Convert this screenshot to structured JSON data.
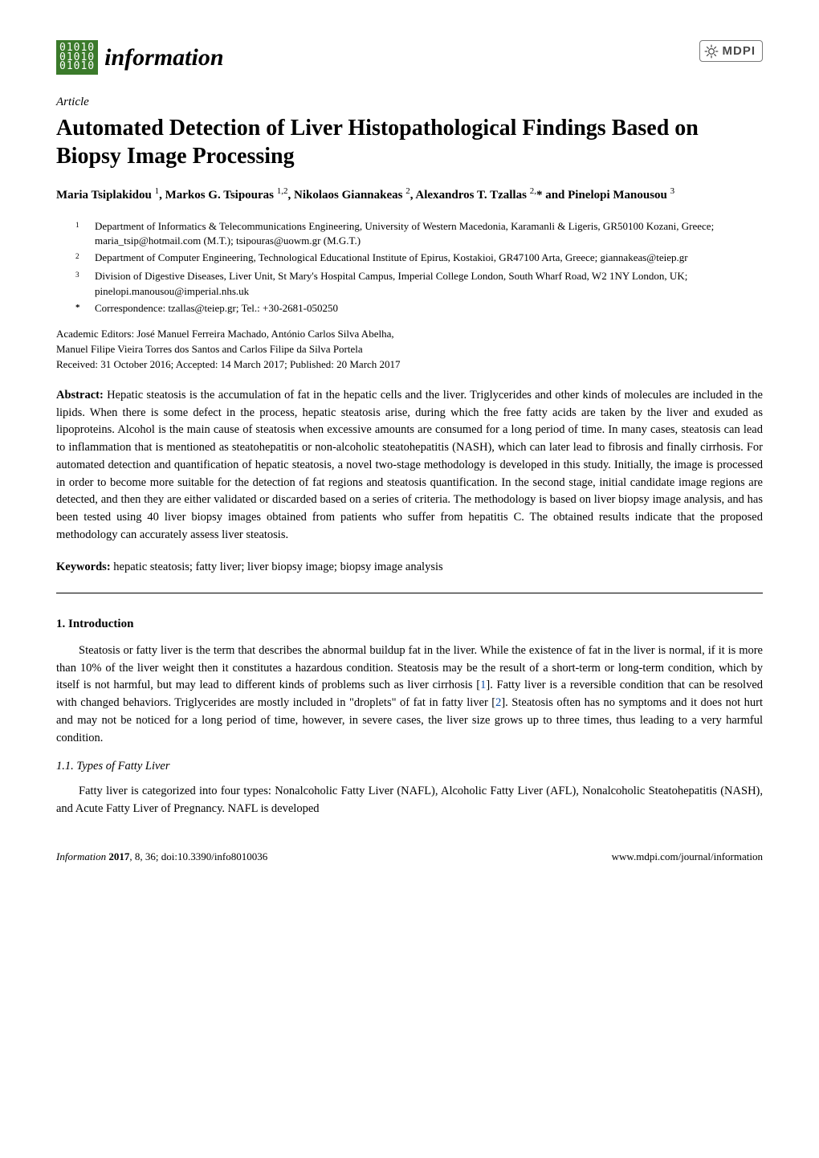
{
  "journal": {
    "logo_matrix": [
      "01010",
      "01010",
      "01010"
    ],
    "name": "information",
    "publisher_logo_text": "MDPI"
  },
  "article": {
    "type": "Article",
    "title": "Automated Detection of Liver Histopathological Findings Based on Biopsy Image Processing",
    "authors_html": "Maria Tsiplakidou <sup>1</sup>, Markos G. Tsipouras <sup>1,2</sup>, Nikolaos Giannakeas <sup>2</sup>, Alexandros T. Tzallas <sup>2,</sup>* and Pinelopi Manousou <sup>3</sup>"
  },
  "affiliations": [
    {
      "num": "1",
      "text": "Department of Informatics & Telecommunications Engineering, University of Western Macedonia, Karamanli & Ligeris, GR50100 Kozani, Greece; maria_tsip@hotmail.com (M.T.); tsipouras@uowm.gr (M.G.T.)"
    },
    {
      "num": "2",
      "text": "Department of Computer Engineering, Technological Educational Institute of Epirus, Kostakioi, GR47100 Arta, Greece; giannakeas@teiep.gr"
    },
    {
      "num": "3",
      "text": "Division of Digestive Diseases, Liver Unit, St Mary's Hospital Campus, Imperial College London, South Wharf Road, W2 1NY London, UK; pinelopi.manousou@imperial.nhs.uk"
    },
    {
      "num": "*",
      "text": "Correspondence: tzallas@teiep.gr; Tel.: +30-2681-050250"
    }
  ],
  "editors": {
    "line1": "Academic Editors: José Manuel Ferreira Machado, António Carlos Silva Abelha,",
    "line2": "Manuel Filipe Vieira Torres dos Santos and Carlos Filipe da Silva Portela",
    "dates": "Received: 31 October 2016; Accepted: 14 March 2017; Published: 20 March 2017"
  },
  "abstract": {
    "label": "Abstract:",
    "text": " Hepatic steatosis is the accumulation of fat in the hepatic cells and the liver. Triglycerides and other kinds of molecules are included in the lipids. When there is some defect in the process, hepatic steatosis arise, during which the free fatty acids are taken by the liver and exuded as lipoproteins. Alcohol is the main cause of steatosis when excessive amounts are consumed for a long period of time. In many cases, steatosis can lead to inflammation that is mentioned as steatohepatitis or non-alcoholic steatohepatitis (NASH), which can later lead to fibrosis and finally cirrhosis. For automated detection and quantification of hepatic steatosis, a novel two-stage methodology is developed in this study. Initially, the image is processed in order to become more suitable for the detection of fat regions and steatosis quantification. In the second stage, initial candidate image regions are detected, and then they are either validated or discarded based on a series of criteria. The methodology is based on liver biopsy image analysis, and has been tested using 40 liver biopsy images obtained from patients who suffer from hepatitis C. The obtained results indicate that the proposed methodology can accurately assess liver steatosis."
  },
  "keywords": {
    "label": "Keywords:",
    "text": " hepatic steatosis; fatty liver; liver biopsy image; biopsy image analysis"
  },
  "sections": {
    "intro_heading": "1. Introduction",
    "intro_p1_a": "Steatosis or fatty liver is the term that describes the abnormal buildup fat in the liver. While the existence of fat in the liver is normal, if it is more than 10% of the liver weight then it constitutes a hazardous condition. Steatosis may be the result of a short-term or long-term condition, which by itself is not harmful, but may lead to different kinds of problems such as liver cirrhosis [",
    "intro_p1_ref1": "1",
    "intro_p1_b": "]. Fatty liver is a reversible condition that can be resolved with changed behaviors. Triglycerides are mostly included in \"droplets\" of fat in fatty liver [",
    "intro_p1_ref2": "2",
    "intro_p1_c": "]. Steatosis often has no symptoms and it does not hurt and may not be noticed for a long period of time, however, in severe cases, the liver size grows up to three times, thus leading to a very harmful condition.",
    "sub11_heading": "1.1. Types of Fatty Liver",
    "sub11_p1": "Fatty liver is categorized into four types: Nonalcoholic Fatty Liver (NAFL), Alcoholic Fatty Liver (AFL), Nonalcoholic Steatohepatitis (NASH), and Acute Fatty Liver of Pregnancy. NAFL is developed"
  },
  "footer": {
    "left_italic": "Information ",
    "left_bold": "2017",
    "left_rest": ", 8, 36; doi:10.3390/info8010036",
    "right": "www.mdpi.com/journal/information"
  },
  "colors": {
    "logo_green": "#3b7a2b",
    "ref_link": "#0b4aa2",
    "mdpi_gray": "#4a4a4a",
    "mdpi_border": "#7a7a7a"
  },
  "typography": {
    "title_fontsize": 28,
    "body_fontsize": 14.5,
    "affil_fontsize": 13,
    "journal_fontsize": 30
  }
}
